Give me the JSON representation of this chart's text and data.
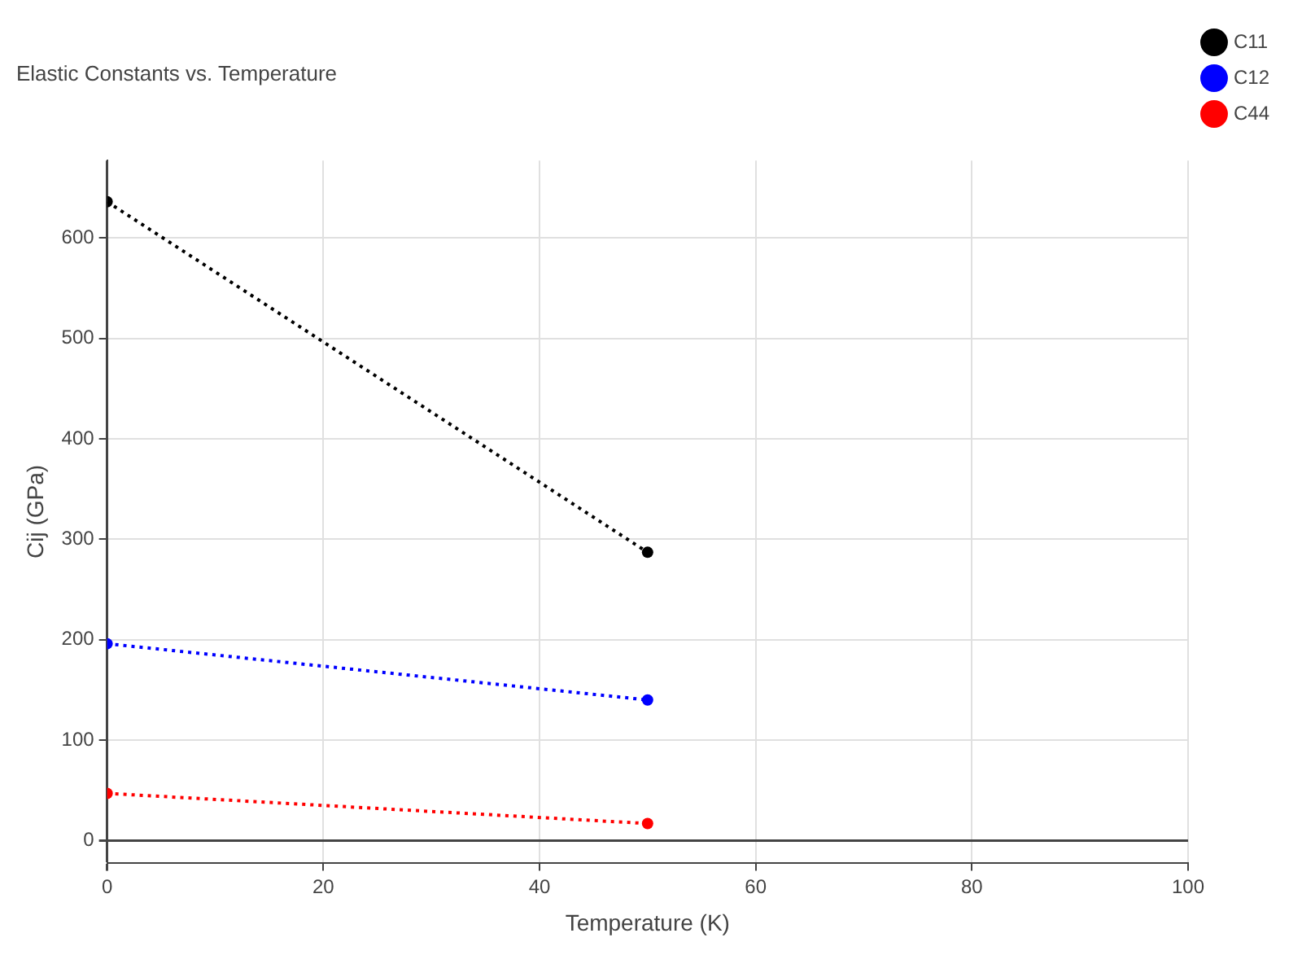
{
  "chart_data": {
    "type": "line",
    "title": "Elastic Constants vs. Temperature",
    "xlabel": "Temperature (K)",
    "ylabel": "Cij (GPa)",
    "x": [
      0,
      50
    ],
    "series": [
      {
        "name": "C11",
        "color": "#000000",
        "values": [
          636,
          287
        ]
      },
      {
        "name": "C12",
        "color": "#0000ff",
        "values": [
          196,
          140
        ]
      },
      {
        "name": "C44",
        "color": "#ff0000",
        "values": [
          47,
          17
        ]
      }
    ],
    "xlim": [
      0,
      100
    ],
    "xticks": [
      0,
      20,
      40,
      60,
      80,
      100
    ],
    "ylim": [
      -22,
      677
    ],
    "yticks": [
      0,
      100,
      200,
      300,
      400,
      500,
      600
    ],
    "grid": true,
    "legend": "top right",
    "marker": "circle",
    "line_style": "dotted"
  }
}
